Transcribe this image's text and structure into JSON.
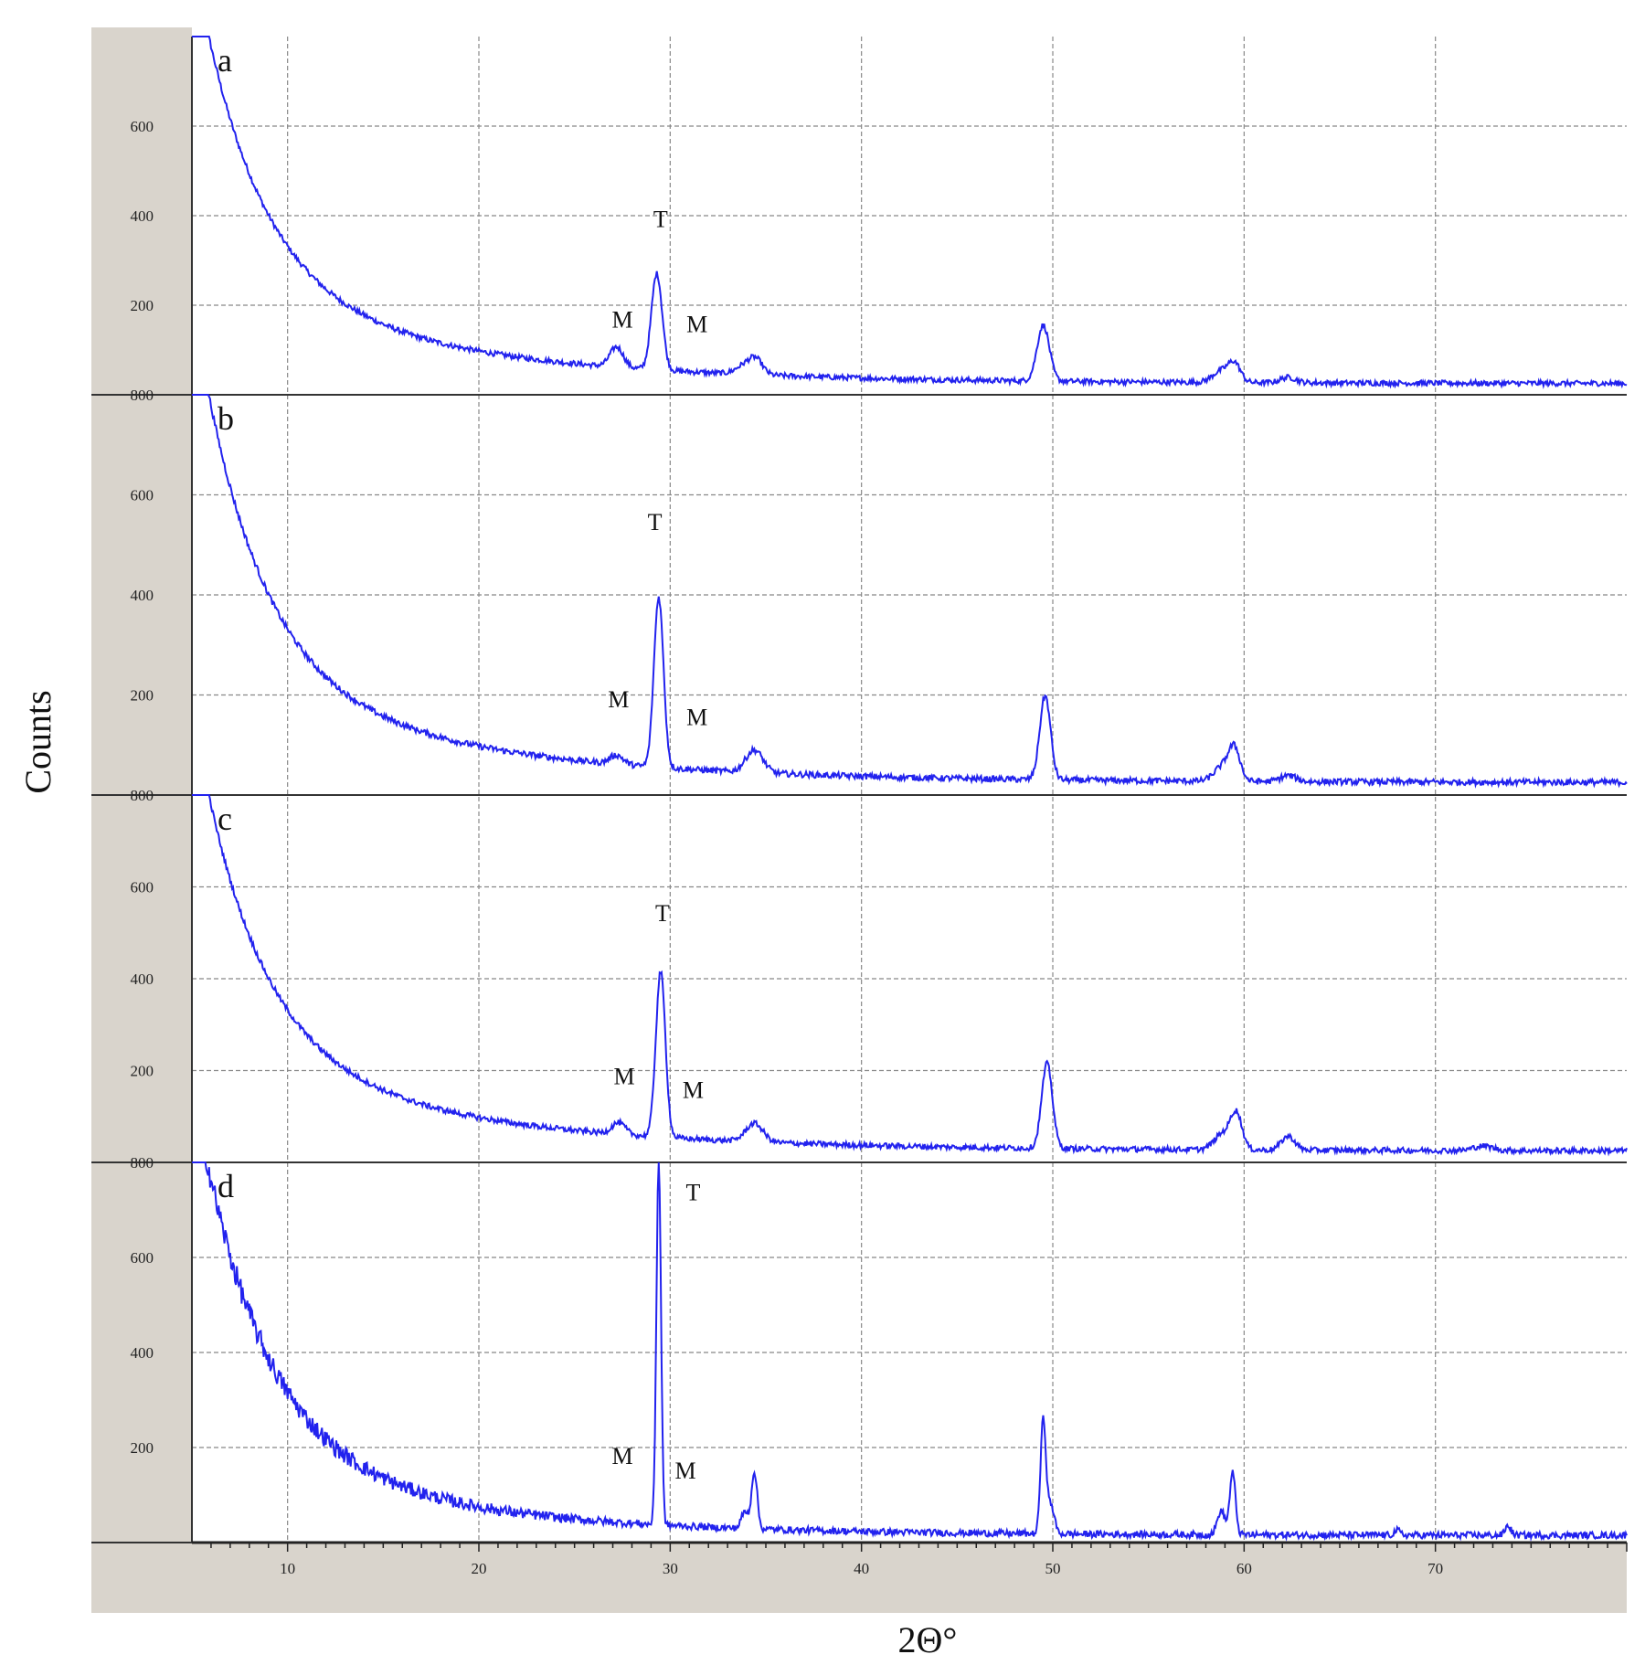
{
  "chart_data": {
    "type": "line",
    "xlabel": "2Θ°",
    "ylabel": "Counts",
    "xlim": [
      5,
      80
    ],
    "ylim": [
      0,
      800
    ],
    "xticks": [
      "10",
      "20",
      "30",
      "40",
      "50",
      "60",
      "70"
    ],
    "yticks": [
      "200",
      "400",
      "600",
      "800"
    ],
    "grid": true,
    "line_color": "#2222ee",
    "panels": [
      {
        "label": "a",
        "peaks": [
          {
            "x": 27.2,
            "y": 45,
            "w": 0.35
          },
          {
            "x": 29.3,
            "y": 215,
            "w": 0.28
          },
          {
            "x": 33.9,
            "y": 20,
            "w": 0.45
          },
          {
            "x": 34.5,
            "y": 30,
            "w": 0.35
          },
          {
            "x": 49.5,
            "y": 125,
            "w": 0.32
          },
          {
            "x": 58.8,
            "y": 25,
            "w": 0.45
          },
          {
            "x": 59.5,
            "y": 40,
            "w": 0.32
          },
          {
            "x": 62.3,
            "y": 12,
            "w": 0.4
          }
        ],
        "annotations": [
          {
            "text": "T",
            "x": 29.5,
            "y": 375
          },
          {
            "text": "M",
            "x": 27.5,
            "y": 150
          },
          {
            "text": "M",
            "x": 31.4,
            "y": 140
          }
        ]
      },
      {
        "label": "b",
        "peaks": [
          {
            "x": 27.2,
            "y": 18,
            "w": 0.35
          },
          {
            "x": 29.4,
            "y": 340,
            "w": 0.25
          },
          {
            "x": 34.4,
            "y": 45,
            "w": 0.45
          },
          {
            "x": 49.6,
            "y": 168,
            "w": 0.28
          },
          {
            "x": 58.9,
            "y": 30,
            "w": 0.45
          },
          {
            "x": 59.5,
            "y": 60,
            "w": 0.3
          },
          {
            "x": 62.3,
            "y": 12,
            "w": 0.4
          }
        ],
        "annotations": [
          {
            "text": "T",
            "x": 29.2,
            "y": 530
          },
          {
            "text": "M",
            "x": 27.3,
            "y": 175
          },
          {
            "text": "M",
            "x": 31.4,
            "y": 140
          }
        ]
      },
      {
        "label": "c",
        "peaks": [
          {
            "x": 27.3,
            "y": 25,
            "w": 0.35
          },
          {
            "x": 29.5,
            "y": 360,
            "w": 0.25
          },
          {
            "x": 34.4,
            "y": 40,
            "w": 0.45
          },
          {
            "x": 49.7,
            "y": 185,
            "w": 0.28
          },
          {
            "x": 58.9,
            "y": 35,
            "w": 0.45
          },
          {
            "x": 59.6,
            "y": 75,
            "w": 0.3
          },
          {
            "x": 62.3,
            "y": 30,
            "w": 0.35
          },
          {
            "x": 72.5,
            "y": 10,
            "w": 0.5
          }
        ],
        "annotations": [
          {
            "text": "T",
            "x": 29.6,
            "y": 525
          },
          {
            "text": "M",
            "x": 27.6,
            "y": 170
          },
          {
            "text": "M",
            "x": 31.2,
            "y": 140
          }
        ]
      },
      {
        "label": "d",
        "peaks": [
          {
            "x": 29.4,
            "y": 765,
            "w": 0.12
          },
          {
            "x": 33.9,
            "y": 35,
            "w": 0.18
          },
          {
            "x": 34.4,
            "y": 120,
            "w": 0.15
          },
          {
            "x": 49.5,
            "y": 240,
            "w": 0.14
          },
          {
            "x": 49.9,
            "y": 60,
            "w": 0.18
          },
          {
            "x": 58.8,
            "y": 50,
            "w": 0.2
          },
          {
            "x": 59.4,
            "y": 130,
            "w": 0.15
          },
          {
            "x": 68.0,
            "y": 10,
            "w": 0.15
          },
          {
            "x": 73.8,
            "y": 20,
            "w": 0.15
          }
        ],
        "annotations": [
          {
            "text": "T",
            "x": 31.2,
            "y": 720
          },
          {
            "text": "M",
            "x": 27.5,
            "y": 165
          },
          {
            "text": "M",
            "x": 30.8,
            "y": 135
          }
        ]
      }
    ]
  }
}
